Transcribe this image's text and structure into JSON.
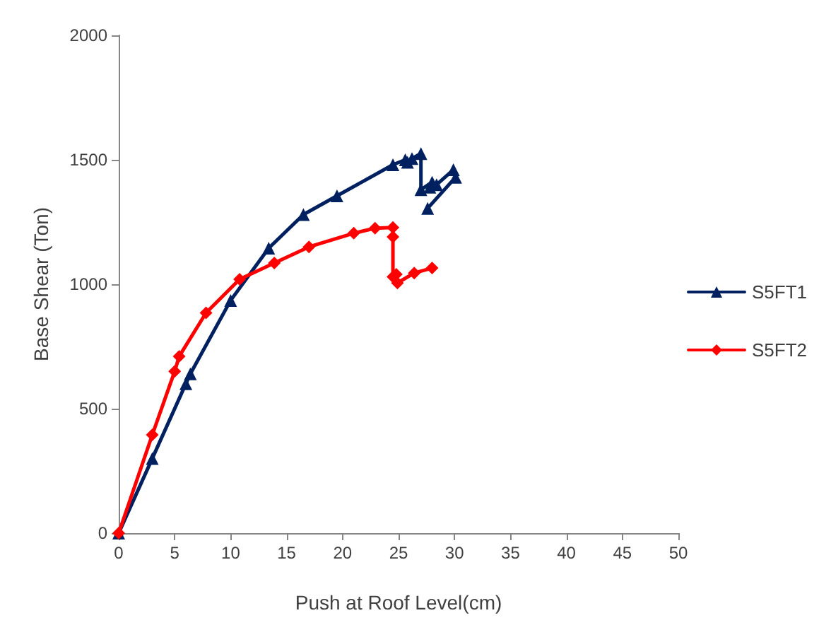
{
  "chart_data": {
    "type": "line",
    "xlabel": "Push at Roof Level(cm)",
    "ylabel": "Base Shear (Ton)",
    "xlim": [
      0,
      50
    ],
    "xticks": [
      0,
      5,
      10,
      15,
      20,
      25,
      30,
      35,
      40,
      45,
      50
    ],
    "ylim": [
      0,
      2000
    ],
    "yticks": [
      0,
      500,
      1000,
      1500,
      2000
    ],
    "grid": false,
    "legend": "right",
    "line_style": "solid",
    "series": [
      {
        "name": "S5FT1",
        "color": "#002060",
        "marker": "triangle",
        "x": [
          0,
          3,
          6,
          6.4,
          10,
          13.4,
          16.5,
          19.5,
          24.5,
          25.6,
          25.8,
          26.2,
          27,
          27,
          28,
          27.8,
          28.4,
          29.9,
          30.1,
          27.6
        ],
        "values": [
          0,
          300,
          600,
          640,
          935,
          1145,
          1280,
          1355,
          1480,
          1500,
          1490,
          1505,
          1525,
          1380,
          1410,
          1390,
          1400,
          1460,
          1430,
          1305
        ]
      },
      {
        "name": "S5FT2",
        "color": "#ff0000",
        "marker": "diamond",
        "x": [
          0,
          3,
          5,
          5.4,
          7.8,
          10.8,
          13.9,
          17,
          21,
          22.9,
          24.5,
          24.5,
          24.5,
          24.8,
          24.9,
          26.4,
          28
        ],
        "values": [
          0,
          395,
          650,
          710,
          885,
          1020,
          1085,
          1150,
          1205,
          1225,
          1228,
          1190,
          1030,
          1040,
          1005,
          1045,
          1065
        ]
      }
    ]
  }
}
